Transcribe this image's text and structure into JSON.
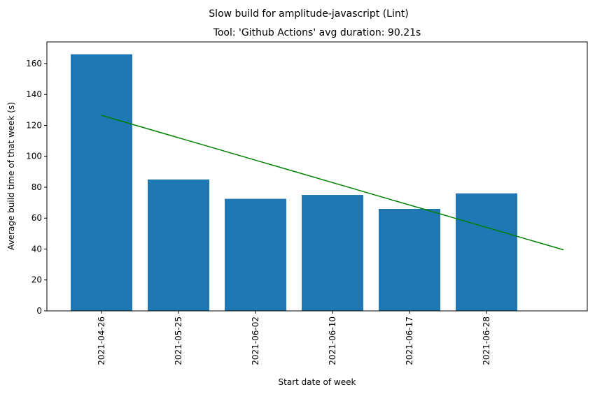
{
  "chart_data": {
    "type": "bar",
    "suptitle": "Slow build for amplitude-javascript (Lint)",
    "title": "Tool: 'Github Actions' avg duration: 90.21s",
    "xlabel": "Start date of week",
    "ylabel": "Average build time of that week (s)",
    "categories": [
      "2021-04-26",
      "2021-05-25",
      "2021-06-02",
      "2021-06-10",
      "2021-06-17",
      "2021-06-28"
    ],
    "values": [
      166,
      85,
      72.5,
      75,
      66,
      76
    ],
    "ylim": [
      0,
      174
    ],
    "yticks": [
      0,
      20,
      40,
      60,
      80,
      100,
      120,
      140,
      160
    ],
    "bar_color": "#1f77b4",
    "trend": {
      "color": "#008000",
      "x_index": [
        0,
        6
      ],
      "values": [
        126.5,
        39.5
      ]
    },
    "grid": false,
    "legend": "none"
  }
}
